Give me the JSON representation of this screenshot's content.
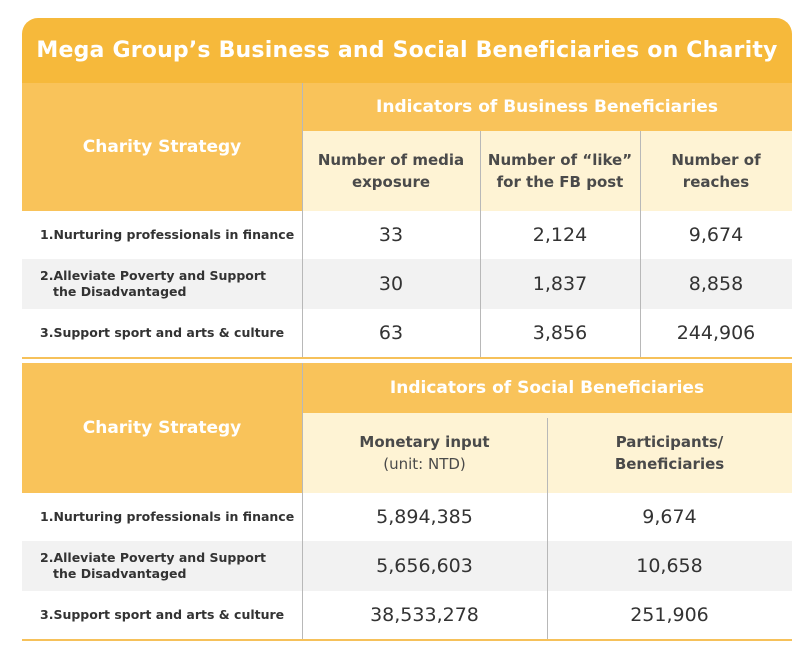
{
  "title": "Mega Group’s Business and Social Beneficiaries on Charity",
  "colors": {
    "header": "#f6b93b",
    "subheader": "#f9c35a",
    "column_header": "#fef3d4",
    "stripe": "#f2f2f2"
  },
  "business": {
    "strategy_label": "Charity Strategy",
    "group_label": "Indicators of Business Beneficiaries",
    "columns": [
      {
        "line1": "Number of media",
        "line2": "exposure"
      },
      {
        "line1": "Number of “like”",
        "line2": "for the FB post"
      },
      {
        "line1": "Number of",
        "line2": "reaches"
      }
    ],
    "rows": [
      {
        "label1": "1.Nurturing professionals in finance",
        "label2": "",
        "values": [
          "33",
          "2,124",
          "9,674"
        ]
      },
      {
        "label1": "2.Alleviate Poverty and Support",
        "label2": "the Disadvantaged",
        "values": [
          "30",
          "1,837",
          "8,858"
        ]
      },
      {
        "label1": "3.Support sport and arts & culture",
        "label2": "",
        "values": [
          "63",
          "3,856",
          "244,906"
        ]
      }
    ]
  },
  "social": {
    "strategy_label": "Charity Strategy",
    "group_label": "Indicators of Social Beneficiaries",
    "columns": [
      {
        "line1": "Monetary input",
        "line2": "(unit: NTD)"
      },
      {
        "line1": "Participants/",
        "line2": "Beneficiaries"
      }
    ],
    "rows": [
      {
        "label1": "1.Nurturing professionals in finance",
        "label2": "",
        "values": [
          "5,894,385",
          "9,674"
        ]
      },
      {
        "label1": "2.Alleviate Poverty and Support",
        "label2": "the Disadvantaged",
        "values": [
          "5,656,603",
          "10,658"
        ]
      },
      {
        "label1": "3.Support sport and arts & culture",
        "label2": "",
        "values": [
          "38,533,278",
          "251,906"
        ]
      }
    ]
  }
}
